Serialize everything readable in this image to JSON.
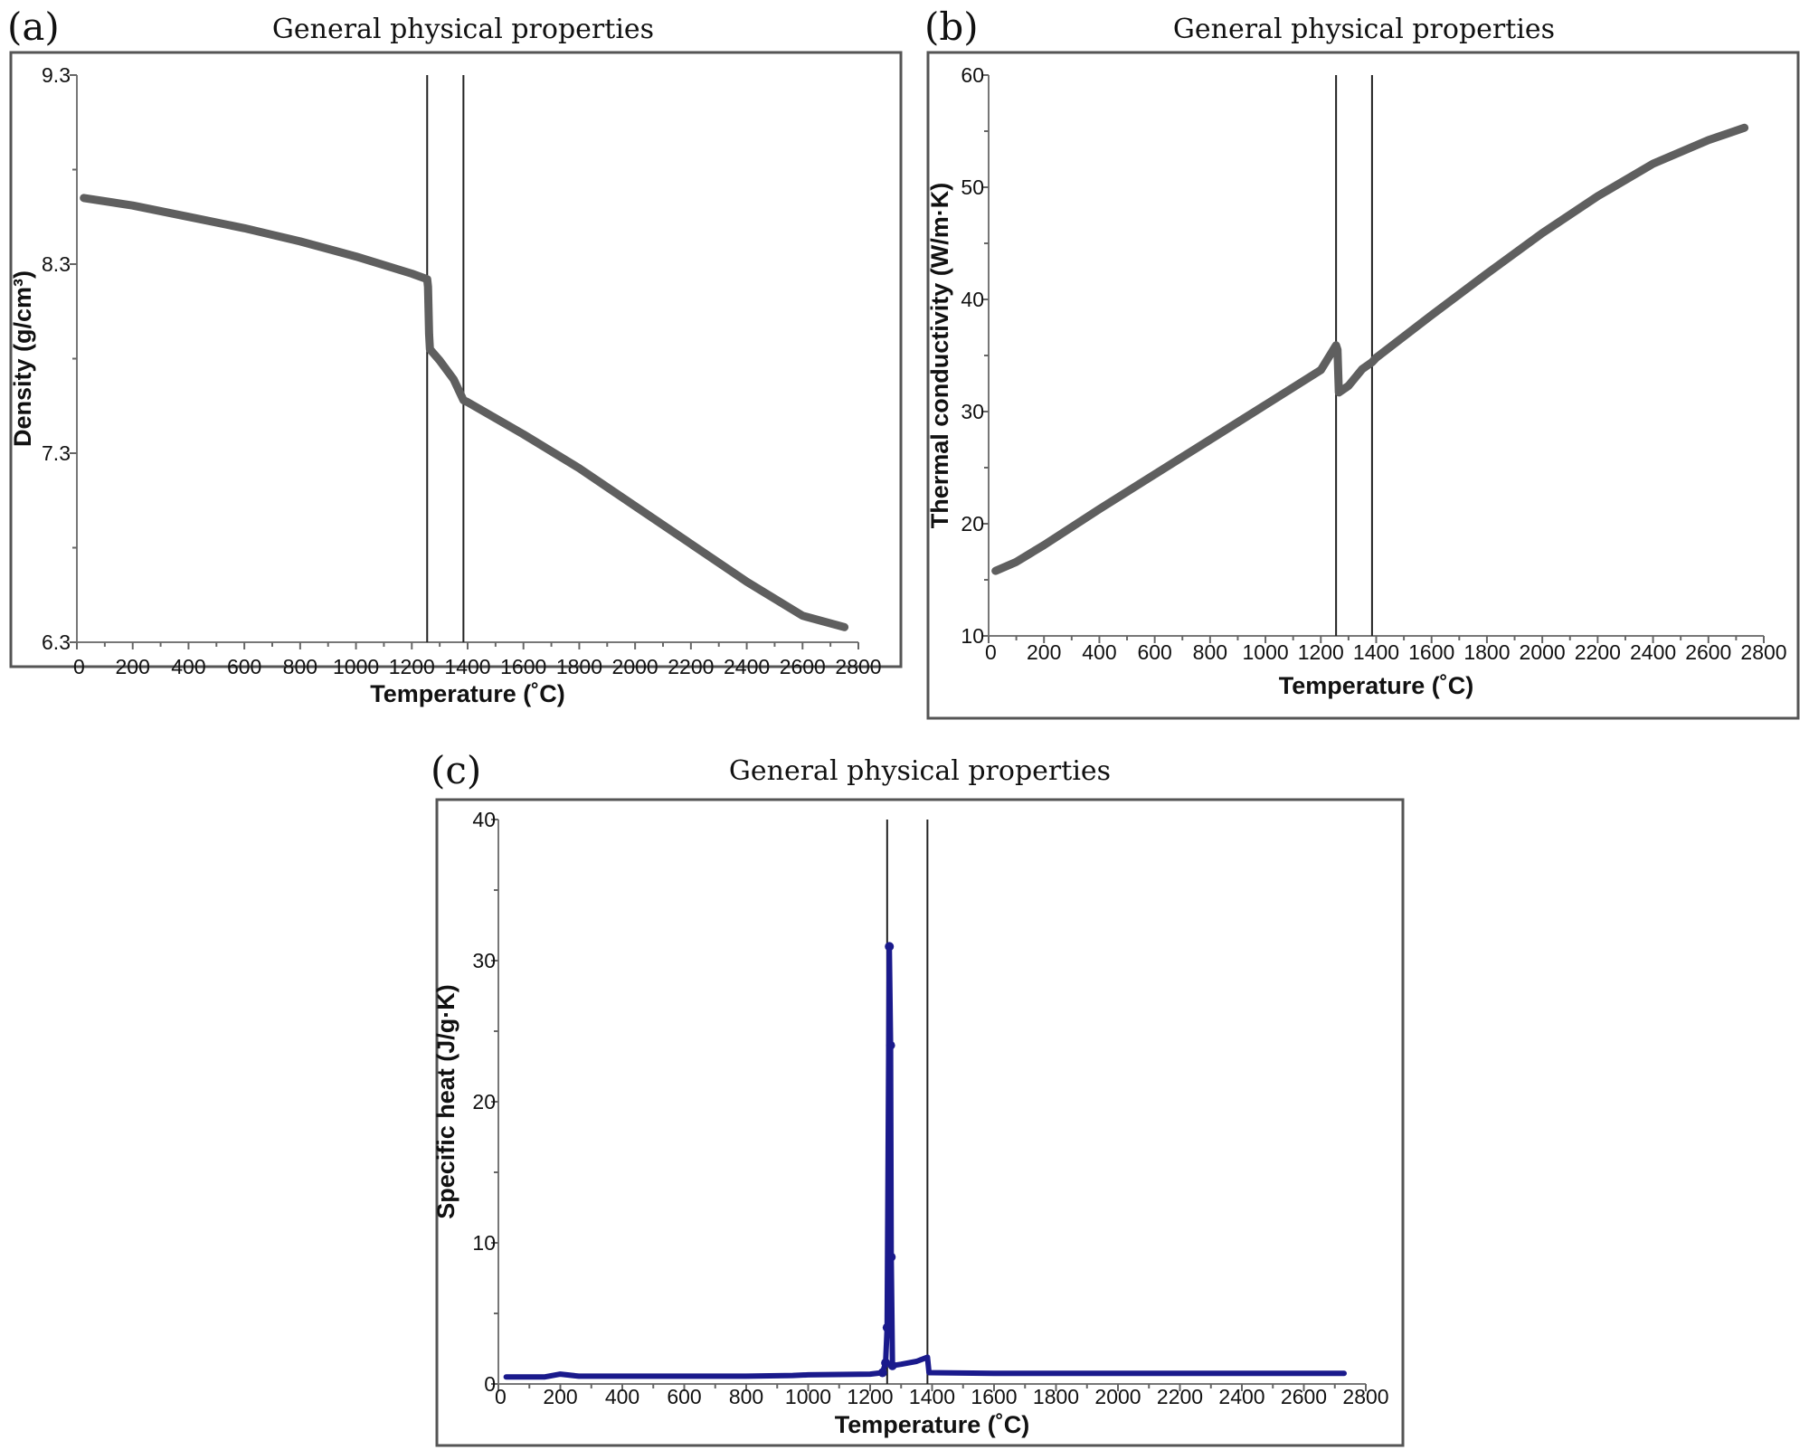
{
  "chart_data": [
    {
      "id": "a",
      "panel_label": "(a)",
      "type": "line",
      "title": "General physical properties",
      "xlabel": "Temperature (˚C)",
      "ylabel": "Density (g/cm³)",
      "xlim": [
        0,
        2800
      ],
      "ylim": [
        6.3,
        9.3
      ],
      "xticks": [
        0,
        200,
        400,
        600,
        800,
        1000,
        1200,
        1400,
        1600,
        1800,
        2000,
        2200,
        2400,
        2600,
        2800
      ],
      "yticks": [
        6.3,
        7.3,
        8.3,
        9.3
      ],
      "transition_lines_x": [
        1255,
        1385
      ],
      "grid": false,
      "series_color": "#5f5f5f",
      "series": [
        {
          "name": "",
          "x": [
            25,
            200,
            400,
            600,
            800,
            1000,
            1200,
            1255,
            1258,
            1262,
            1265,
            1300,
            1350,
            1385,
            1400,
            1600,
            1800,
            2000,
            2200,
            2400,
            2600,
            2750
          ],
          "y": [
            8.65,
            8.61,
            8.55,
            8.49,
            8.42,
            8.34,
            8.25,
            8.22,
            8.18,
            7.93,
            7.85,
            7.79,
            7.69,
            7.58,
            7.57,
            7.4,
            7.22,
            7.02,
            6.82,
            6.62,
            6.44,
            6.38
          ]
        }
      ]
    },
    {
      "id": "b",
      "panel_label": "(b)",
      "type": "line",
      "title": "General physical properties",
      "xlabel": "Temperature (˚C)",
      "ylabel": "Thermal conductivity (W/m·K)",
      "xlim": [
        0,
        2800
      ],
      "ylim": [
        10,
        60
      ],
      "xticks": [
        0,
        200,
        400,
        600,
        800,
        1000,
        1200,
        1400,
        1600,
        1800,
        2000,
        2200,
        2400,
        2600,
        2800
      ],
      "yticks": [
        10,
        20,
        30,
        40,
        50,
        60
      ],
      "transition_lines_x": [
        1255,
        1385
      ],
      "grid": false,
      "series_color": "#5f5f5f",
      "series": [
        {
          "name": "",
          "x": [
            25,
            100,
            200,
            400,
            600,
            800,
            1000,
            1200,
            1255,
            1260,
            1265,
            1300,
            1350,
            1385,
            1400,
            1600,
            1800,
            2000,
            2200,
            2400,
            2600,
            2730
          ],
          "y": [
            15.8,
            16.6,
            18.1,
            21.3,
            24.4,
            27.5,
            30.6,
            33.7,
            35.9,
            35.5,
            31.7,
            32.3,
            33.8,
            34.4,
            34.8,
            38.6,
            42.3,
            45.9,
            49.2,
            52.1,
            54.2,
            55.3
          ]
        }
      ]
    },
    {
      "id": "c",
      "panel_label": "(c)",
      "type": "line",
      "title": "General physical properties",
      "xlabel": "Temperature (˚C)",
      "ylabel": "Specific heat (J/g·K)",
      "xlim": [
        0,
        2800
      ],
      "ylim": [
        0,
        40
      ],
      "xticks": [
        0,
        200,
        400,
        600,
        800,
        1000,
        1200,
        1400,
        1600,
        1800,
        2000,
        2200,
        2400,
        2600,
        2800
      ],
      "yticks": [
        0,
        10,
        20,
        30,
        40
      ],
      "transition_lines_x": [
        1255,
        1385
      ],
      "grid": false,
      "series_color": "#1a1a8c",
      "series": [
        {
          "name": "",
          "x": [
            25,
            150,
            200,
            260,
            400,
            600,
            800,
            950,
            1000,
            1200,
            1240,
            1250,
            1255,
            1262,
            1266,
            1268,
            1272,
            1300,
            1350,
            1385,
            1390,
            1600,
            2000,
            2400,
            2730
          ],
          "y": [
            0.5,
            0.5,
            0.7,
            0.55,
            0.55,
            0.55,
            0.55,
            0.6,
            0.65,
            0.7,
            0.8,
            1.5,
            4.0,
            31.0,
            24.0,
            9.0,
            1.3,
            1.4,
            1.6,
            1.9,
            0.8,
            0.75,
            0.75,
            0.75,
            0.75
          ]
        }
      ]
    }
  ]
}
